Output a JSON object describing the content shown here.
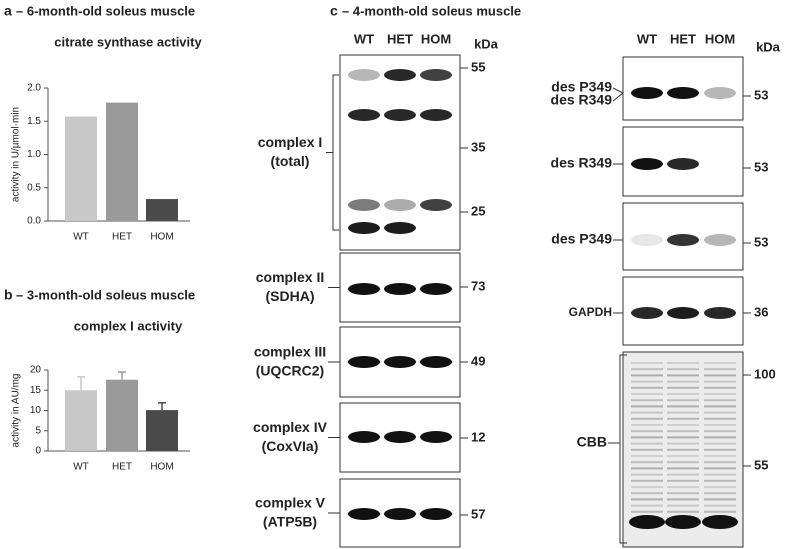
{
  "chart_data": [
    {
      "type": "bar",
      "panel_label": "a",
      "title": "– 6-month-old soleus muscle",
      "subtitle": "citrate synthase activity",
      "y_label": "activity in U/µmol·min",
      "categories": [
        "WT",
        "HET",
        "HOM"
      ],
      "values": [
        1.57,
        1.78,
        0.33
      ],
      "colors": [
        "#c8c8c8",
        "#9a9a9a",
        "#4a4a4a"
      ],
      "ylim": [
        0,
        2
      ],
      "yticks": [
        {
          "value": 0,
          "label": "0.0"
        },
        {
          "value": 0.5,
          "label": "0.5"
        },
        {
          "value": 1,
          "label": "1.0"
        },
        {
          "value": 1.5,
          "label": "1.5"
        },
        {
          "value": 2,
          "label": "2.0"
        }
      ]
    },
    {
      "type": "bar",
      "panel_label": "b",
      "title": "– 3-month-old soleus muscle",
      "subtitle": "complex I activity",
      "y_label": "activity in AU/mg",
      "categories": [
        "WT",
        "HET",
        "HOM"
      ],
      "values": [
        15,
        17.6,
        10.1
      ],
      "errors": [
        3.3,
        1.9,
        1.8
      ],
      "colors": [
        "#c8c8c8",
        "#9a9a9a",
        "#4a4a4a"
      ],
      "ylim": [
        0,
        20
      ],
      "yticks": [
        0,
        5,
        10,
        15,
        20
      ]
    }
  ],
  "panel_c": {
    "panel_label": "c",
    "title": "– 4-month-old soleus muscle",
    "left": {
      "columns": [
        "WT",
        "HET",
        "HOM"
      ],
      "unit": "kDa",
      "blots": [
        {
          "label": [
            "complex I",
            "(total)"
          ],
          "markers": [
            55,
            35,
            25
          ]
        },
        {
          "label": [
            "complex II",
            "(SDHA)"
          ],
          "markers": [
            73
          ]
        },
        {
          "label": [
            "complex III",
            "(UQCRC2)"
          ],
          "markers": [
            49
          ]
        },
        {
          "label": [
            "complex IV",
            "(CoxVIa)"
          ],
          "markers": [
            12
          ]
        },
        {
          "label": [
            "complex V",
            "(ATP5B)"
          ],
          "markers": [
            57
          ]
        }
      ]
    },
    "right": {
      "columns": [
        "WT",
        "HET",
        "HOM"
      ],
      "unit": "kDa",
      "blots": [
        {
          "label": [
            "des P349",
            "des R349"
          ],
          "markers": [
            53
          ]
        },
        {
          "label": [
            "des R349"
          ],
          "markers": [
            53
          ]
        },
        {
          "label": [
            "des P349"
          ],
          "markers": [
            53
          ]
        },
        {
          "label": [
            "GAPDH"
          ],
          "markers": [
            36
          ]
        },
        {
          "label": [
            "CBB"
          ],
          "markers": [
            100,
            55
          ]
        }
      ]
    }
  }
}
